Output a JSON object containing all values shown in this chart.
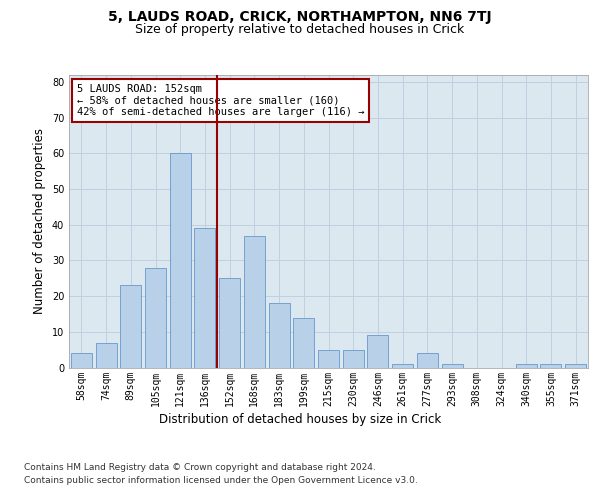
{
  "title": "5, LAUDS ROAD, CRICK, NORTHAMPTON, NN6 7TJ",
  "subtitle": "Size of property relative to detached houses in Crick",
  "xlabel": "Distribution of detached houses by size in Crick",
  "ylabel": "Number of detached properties",
  "footer_line1": "Contains HM Land Registry data © Crown copyright and database right 2024.",
  "footer_line2": "Contains public sector information licensed under the Open Government Licence v3.0.",
  "bar_labels": [
    "58sqm",
    "74sqm",
    "89sqm",
    "105sqm",
    "121sqm",
    "136sqm",
    "152sqm",
    "168sqm",
    "183sqm",
    "199sqm",
    "215sqm",
    "230sqm",
    "246sqm",
    "261sqm",
    "277sqm",
    "293sqm",
    "308sqm",
    "324sqm",
    "340sqm",
    "355sqm",
    "371sqm"
  ],
  "bar_values": [
    4,
    7,
    23,
    28,
    60,
    39,
    25,
    37,
    18,
    14,
    5,
    5,
    9,
    1,
    4,
    1,
    0,
    0,
    1,
    1,
    1
  ],
  "bar_color": "#b8d0e8",
  "bar_edge_color": "#6699cc",
  "reference_line_color": "#990000",
  "annotation_text": "5 LAUDS ROAD: 152sqm\n← 58% of detached houses are smaller (160)\n42% of semi-detached houses are larger (116) →",
  "annotation_box_color": "#990000",
  "annotation_fill": "white",
  "ylim": [
    0,
    82
  ],
  "yticks": [
    0,
    10,
    20,
    30,
    40,
    50,
    60,
    70,
    80
  ],
  "grid_color": "#c0d0e0",
  "background_color": "#dce8f0",
  "title_fontsize": 10,
  "subtitle_fontsize": 9,
  "axis_label_fontsize": 8.5,
  "tick_fontsize": 7,
  "footer_fontsize": 6.5
}
